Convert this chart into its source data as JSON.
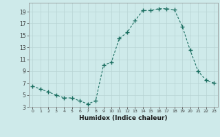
{
  "x": [
    0,
    1,
    2,
    3,
    4,
    5,
    6,
    7,
    8,
    9,
    10,
    11,
    12,
    13,
    14,
    15,
    16,
    17,
    18,
    19,
    20,
    21,
    22,
    23
  ],
  "y": [
    6.5,
    6.0,
    5.5,
    5.0,
    4.5,
    4.5,
    4.0,
    3.5,
    4.0,
    10.0,
    10.5,
    14.5,
    15.5,
    17.5,
    19.2,
    19.2,
    19.5,
    19.5,
    19.3,
    16.5,
    12.5,
    9.0,
    7.5,
    7.0
  ],
  "line_color": "#1a6e60",
  "marker_color": "#1a6e60",
  "bg_color": "#ceeaea",
  "grid_color": "#b8d4d4",
  "xlabel": "Humidex (Indice chaleur)",
  "ylim": [
    3,
    20
  ],
  "xlim": [
    -0.5,
    23.5
  ],
  "yticks": [
    3,
    5,
    7,
    9,
    11,
    13,
    15,
    17,
    19
  ],
  "xticks": [
    0,
    1,
    2,
    3,
    4,
    5,
    6,
    7,
    8,
    9,
    10,
    11,
    12,
    13,
    14,
    15,
    16,
    17,
    18,
    19,
    20,
    21,
    22,
    23
  ],
  "tick_fontsize": 5.5,
  "xlabel_fontsize": 6.5
}
